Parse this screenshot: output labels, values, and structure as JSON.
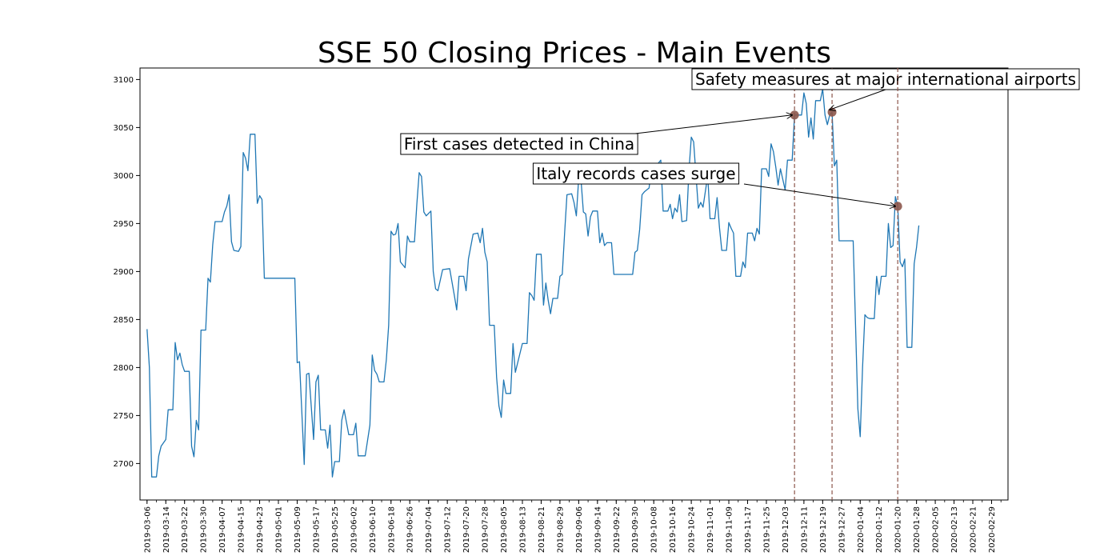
{
  "chart_data": {
    "type": "line",
    "title": "SSE 50 Closing Prices - Main Events",
    "xlabel": "",
    "ylabel": "",
    "x_range": [
      "2019-03-03",
      "2020-03-07"
    ],
    "ylim": [
      2662,
      3112
    ],
    "grid": false,
    "series_color": "#1f77b4",
    "event_color": "#8c564b",
    "y_ticks": [
      2700,
      2750,
      2800,
      2850,
      2900,
      2950,
      3000,
      3050,
      3100
    ],
    "x_ticks": [
      "2019-03-06",
      "2019-03-14",
      "2019-03-22",
      "2019-03-30",
      "2019-04-07",
      "2019-04-15",
      "2019-04-23",
      "2019-05-01",
      "2019-05-09",
      "2019-05-17",
      "2019-05-25",
      "2019-06-02",
      "2019-06-10",
      "2019-06-18",
      "2019-06-26",
      "2019-07-04",
      "2019-07-12",
      "2019-07-20",
      "2019-07-28",
      "2019-08-05",
      "2019-08-13",
      "2019-08-21",
      "2019-08-29",
      "2019-09-06",
      "2019-09-14",
      "2019-09-22",
      "2019-09-30",
      "2019-10-08",
      "2019-10-16",
      "2019-10-24",
      "2019-11-01",
      "2019-11-09",
      "2019-11-17",
      "2019-11-25",
      "2019-12-03",
      "2019-12-11",
      "2019-12-19",
      "2019-12-27",
      "2020-01-04",
      "2020-01-12",
      "2020-01-20",
      "2020-01-28",
      "2020-02-05",
      "2020-02-13",
      "2020-02-21",
      "2020-02-29"
    ],
    "series": [
      {
        "points": [
          [
            "2019-03-06",
            2840
          ],
          [
            "2019-03-07",
            2800
          ],
          [
            "2019-03-08",
            2686
          ],
          [
            "2019-03-10",
            2686
          ],
          [
            "2019-03-11",
            2708
          ],
          [
            "2019-03-12",
            2718
          ],
          [
            "2019-03-14",
            2725
          ],
          [
            "2019-03-15",
            2756
          ],
          [
            "2019-03-17",
            2756
          ],
          [
            "2019-03-18",
            2826
          ],
          [
            "2019-03-19",
            2808
          ],
          [
            "2019-03-20",
            2815
          ],
          [
            "2019-03-21",
            2803
          ],
          [
            "2019-03-22",
            2796
          ],
          [
            "2019-03-24",
            2796
          ],
          [
            "2019-03-25",
            2718
          ],
          [
            "2019-03-26",
            2707
          ],
          [
            "2019-03-27",
            2745
          ],
          [
            "2019-03-28",
            2735
          ],
          [
            "2019-03-29",
            2839
          ],
          [
            "2019-03-31",
            2839
          ],
          [
            "2019-04-01",
            2893
          ],
          [
            "2019-04-02",
            2889
          ],
          [
            "2019-04-03",
            2928
          ],
          [
            "2019-04-04",
            2952
          ],
          [
            "2019-04-07",
            2952
          ],
          [
            "2019-04-08",
            2962
          ],
          [
            "2019-04-09",
            2968
          ],
          [
            "2019-04-10",
            2980
          ],
          [
            "2019-04-11",
            2931
          ],
          [
            "2019-04-12",
            2922
          ],
          [
            "2019-04-14",
            2921
          ],
          [
            "2019-04-15",
            2926
          ],
          [
            "2019-04-16",
            3024
          ],
          [
            "2019-04-17",
            3018
          ],
          [
            "2019-04-18",
            3005
          ],
          [
            "2019-04-19",
            3043
          ],
          [
            "2019-04-21",
            3043
          ],
          [
            "2019-04-22",
            2971
          ],
          [
            "2019-04-23",
            2979
          ],
          [
            "2019-04-24",
            2975
          ],
          [
            "2019-04-25",
            2893
          ],
          [
            "2019-05-08",
            2893
          ],
          [
            "2019-05-09",
            2805
          ],
          [
            "2019-05-10",
            2806
          ],
          [
            "2019-05-12",
            2699
          ],
          [
            "2019-05-13",
            2793
          ],
          [
            "2019-05-14",
            2794
          ],
          [
            "2019-05-16",
            2725
          ],
          [
            "2019-05-17",
            2785
          ],
          [
            "2019-05-18",
            2792
          ],
          [
            "2019-05-19",
            2735
          ],
          [
            "2019-05-21",
            2735
          ],
          [
            "2019-05-22",
            2716
          ],
          [
            "2019-05-23",
            2740
          ],
          [
            "2019-05-24",
            2686
          ],
          [
            "2019-05-25",
            2702
          ],
          [
            "2019-05-27",
            2702
          ],
          [
            "2019-05-28",
            2745
          ],
          [
            "2019-05-29",
            2756
          ],
          [
            "2019-05-31",
            2730
          ],
          [
            "2019-06-02",
            2730
          ],
          [
            "2019-06-03",
            2742
          ],
          [
            "2019-06-04",
            2708
          ],
          [
            "2019-06-07",
            2708
          ],
          [
            "2019-06-09",
            2740
          ],
          [
            "2019-06-10",
            2813
          ],
          [
            "2019-06-11",
            2797
          ],
          [
            "2019-06-12",
            2793
          ],
          [
            "2019-06-13",
            2785
          ],
          [
            "2019-06-15",
            2785
          ],
          [
            "2019-06-16",
            2808
          ],
          [
            "2019-06-17",
            2844
          ],
          [
            "2019-06-18",
            2942
          ],
          [
            "2019-06-19",
            2938
          ],
          [
            "2019-06-20",
            2939
          ],
          [
            "2019-06-21",
            2950
          ],
          [
            "2019-06-22",
            2910
          ],
          [
            "2019-06-24",
            2904
          ],
          [
            "2019-06-25",
            2937
          ],
          [
            "2019-06-26",
            2931
          ],
          [
            "2019-06-28",
            2931
          ],
          [
            "2019-06-29",
            2970
          ],
          [
            "2019-06-30",
            3003
          ],
          [
            "2019-07-01",
            2999
          ],
          [
            "2019-07-02",
            2962
          ],
          [
            "2019-07-03",
            2958
          ],
          [
            "2019-07-05",
            2963
          ],
          [
            "2019-07-06",
            2900
          ],
          [
            "2019-07-07",
            2882
          ],
          [
            "2019-07-08",
            2880
          ],
          [
            "2019-07-10",
            2902
          ],
          [
            "2019-07-13",
            2903
          ],
          [
            "2019-07-15",
            2875
          ],
          [
            "2019-07-16",
            2860
          ],
          [
            "2019-07-17",
            2895
          ],
          [
            "2019-07-19",
            2895
          ],
          [
            "2019-07-20",
            2880
          ],
          [
            "2019-07-21",
            2913
          ],
          [
            "2019-07-23",
            2939
          ],
          [
            "2019-07-25",
            2940
          ],
          [
            "2019-07-26",
            2930
          ],
          [
            "2019-07-27",
            2945
          ],
          [
            "2019-07-28",
            2920
          ],
          [
            "2019-07-29",
            2910
          ],
          [
            "2019-07-30",
            2844
          ],
          [
            "2019-08-01",
            2844
          ],
          [
            "2019-08-02",
            2790
          ],
          [
            "2019-08-03",
            2760
          ],
          [
            "2019-08-04",
            2748
          ],
          [
            "2019-08-05",
            2787
          ],
          [
            "2019-08-06",
            2773
          ],
          [
            "2019-08-08",
            2773
          ],
          [
            "2019-08-09",
            2825
          ],
          [
            "2019-08-10",
            2795
          ],
          [
            "2019-08-12",
            2815
          ],
          [
            "2019-08-13",
            2825
          ],
          [
            "2019-08-15",
            2825
          ],
          [
            "2019-08-16",
            2878
          ],
          [
            "2019-08-17",
            2875
          ],
          [
            "2019-08-18",
            2870
          ],
          [
            "2019-08-19",
            2918
          ],
          [
            "2019-08-21",
            2918
          ],
          [
            "2019-08-22",
            2865
          ],
          [
            "2019-08-23",
            2888
          ],
          [
            "2019-08-24",
            2870
          ],
          [
            "2019-08-25",
            2856
          ],
          [
            "2019-08-26",
            2872
          ],
          [
            "2019-08-28",
            2872
          ],
          [
            "2019-08-29",
            2895
          ],
          [
            "2019-08-30",
            2897
          ],
          [
            "2019-08-31",
            2940
          ],
          [
            "2019-09-01",
            2980
          ],
          [
            "2019-09-03",
            2981
          ],
          [
            "2019-09-04",
            2972
          ],
          [
            "2019-09-05",
            2958
          ],
          [
            "2019-09-06",
            2997
          ],
          [
            "2019-09-07",
            2995
          ],
          [
            "2019-09-08",
            2962
          ],
          [
            "2019-09-09",
            2960
          ],
          [
            "2019-09-10",
            2937
          ],
          [
            "2019-09-11",
            2957
          ],
          [
            "2019-09-12",
            2963
          ],
          [
            "2019-09-14",
            2963
          ],
          [
            "2019-09-15",
            2930
          ],
          [
            "2019-09-16",
            2940
          ],
          [
            "2019-09-17",
            2927
          ],
          [
            "2019-09-18",
            2930
          ],
          [
            "2019-09-20",
            2930
          ],
          [
            "2019-09-21",
            2897
          ],
          [
            "2019-09-29",
            2897
          ],
          [
            "2019-09-30",
            2920
          ],
          [
            "2019-10-01",
            2922
          ],
          [
            "2019-10-02",
            2944
          ],
          [
            "2019-10-03",
            2980
          ],
          [
            "2019-10-04",
            2983
          ],
          [
            "2019-10-06",
            2987
          ],
          [
            "2019-10-07",
            3007
          ],
          [
            "2019-10-08",
            3002
          ],
          [
            "2019-10-09",
            3010
          ],
          [
            "2019-10-11",
            3016
          ],
          [
            "2019-10-12",
            2963
          ],
          [
            "2019-10-14",
            2963
          ],
          [
            "2019-10-15",
            2970
          ],
          [
            "2019-10-16",
            2955
          ],
          [
            "2019-10-17",
            2966
          ],
          [
            "2019-10-18",
            2962
          ],
          [
            "2019-10-19",
            2980
          ],
          [
            "2019-10-20",
            2952
          ],
          [
            "2019-10-22",
            2953
          ],
          [
            "2019-10-23",
            3005
          ],
          [
            "2019-10-24",
            3040
          ],
          [
            "2019-10-25",
            3035
          ],
          [
            "2019-10-26",
            3000
          ],
          [
            "2019-10-27",
            2966
          ],
          [
            "2019-10-28",
            2972
          ],
          [
            "2019-10-29",
            2967
          ],
          [
            "2019-10-31",
            3000
          ],
          [
            "2019-11-01",
            2955
          ],
          [
            "2019-11-03",
            2955
          ],
          [
            "2019-11-04",
            2977
          ],
          [
            "2019-11-05",
            2946
          ],
          [
            "2019-11-06",
            2922
          ],
          [
            "2019-11-08",
            2922
          ],
          [
            "2019-11-09",
            2951
          ],
          [
            "2019-11-10",
            2945
          ],
          [
            "2019-11-11",
            2940
          ],
          [
            "2019-11-12",
            2895
          ],
          [
            "2019-11-14",
            2895
          ],
          [
            "2019-11-15",
            2910
          ],
          [
            "2019-11-16",
            2904
          ],
          [
            "2019-11-17",
            2940
          ],
          [
            "2019-11-19",
            2940
          ],
          [
            "2019-11-20",
            2932
          ],
          [
            "2019-11-21",
            2945
          ],
          [
            "2019-11-22",
            2939
          ],
          [
            "2019-11-23",
            3007
          ],
          [
            "2019-11-25",
            3007
          ],
          [
            "2019-11-26",
            2999
          ],
          [
            "2019-11-27",
            3033
          ],
          [
            "2019-11-28",
            3025
          ],
          [
            "2019-11-29",
            3009
          ],
          [
            "2019-11-30",
            2990
          ],
          [
            "2019-12-01",
            3007
          ],
          [
            "2019-12-03",
            2985
          ],
          [
            "2019-12-04",
            3016
          ],
          [
            "2019-12-06",
            3016
          ],
          [
            "2019-12-07",
            3063
          ],
          [
            "2019-12-10",
            3063
          ],
          [
            "2019-12-11",
            3086
          ],
          [
            "2019-12-12",
            3075
          ],
          [
            "2019-12-13",
            3040
          ],
          [
            "2019-12-14",
            3060
          ],
          [
            "2019-12-15",
            3038
          ],
          [
            "2019-12-16",
            3078
          ],
          [
            "2019-12-18",
            3078
          ],
          [
            "2019-12-19",
            3090
          ],
          [
            "2019-12-20",
            3063
          ],
          [
            "2019-12-21",
            3053
          ],
          [
            "2019-12-22",
            3063
          ],
          [
            "2019-12-23",
            3066
          ],
          [
            "2019-12-24",
            3010
          ],
          [
            "2019-12-25",
            3016
          ],
          [
            "2019-12-26",
            2932
          ],
          [
            "2020-01-01",
            2932
          ],
          [
            "2020-01-02",
            2845
          ],
          [
            "2020-01-03",
            2757
          ],
          [
            "2020-01-04",
            2728
          ],
          [
            "2020-01-05",
            2800
          ],
          [
            "2020-01-06",
            2855
          ],
          [
            "2020-01-07",
            2852
          ],
          [
            "2020-01-08",
            2851
          ],
          [
            "2020-01-10",
            2851
          ],
          [
            "2020-01-11",
            2895
          ],
          [
            "2020-01-12",
            2876
          ],
          [
            "2020-01-13",
            2895
          ],
          [
            "2020-01-15",
            2895
          ],
          [
            "2020-01-16",
            2950
          ],
          [
            "2020-01-17",
            2925
          ],
          [
            "2020-01-18",
            2927
          ],
          [
            "2020-01-19",
            2978
          ],
          [
            "2020-01-20",
            2968
          ],
          [
            "2020-01-21",
            2910
          ],
          [
            "2020-01-22",
            2905
          ],
          [
            "2020-01-23",
            2913
          ],
          [
            "2020-01-24",
            2821
          ],
          [
            "2020-01-26",
            2821
          ],
          [
            "2020-01-27",
            2908
          ],
          [
            "2020-01-28",
            2925
          ],
          [
            "2020-01-29",
            2948
          ]
        ]
      }
    ],
    "events": [
      {
        "label": "First cases detected in China",
        "date": "2019-12-07",
        "value": 3063
      },
      {
        "label": "Safety measures at major international airports",
        "date": "2019-12-23",
        "value": 3066
      },
      {
        "label": "Italy records cases surge",
        "date": "2020-01-20",
        "value": 2968
      }
    ]
  }
}
